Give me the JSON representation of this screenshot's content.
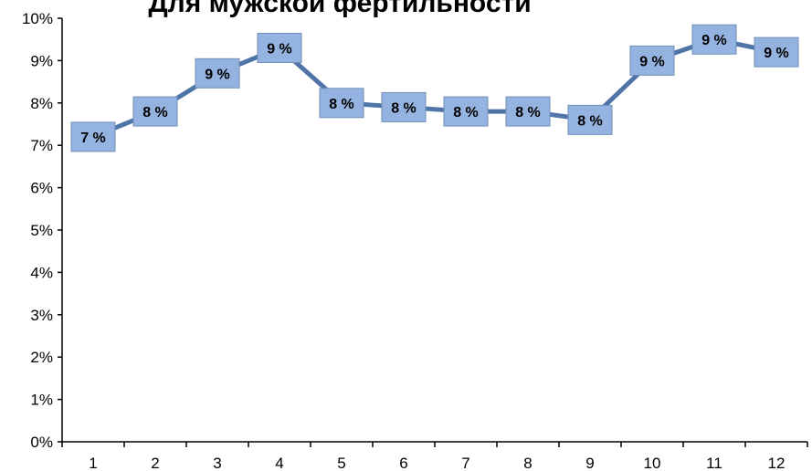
{
  "chart_data": {
    "type": "line",
    "title": "Для мужской фертильности",
    "xlabel": "",
    "ylabel": "",
    "categories": [
      "1",
      "2",
      "3",
      "4",
      "5",
      "6",
      "7",
      "8",
      "9",
      "10",
      "11",
      "12"
    ],
    "series": [
      {
        "values": [
          7.2,
          7.8,
          8.7,
          9.3,
          8.0,
          7.9,
          7.8,
          7.8,
          7.6,
          9.0,
          9.5,
          9.2
        ],
        "data_labels": [
          "7 %",
          "8 %",
          "9 %",
          "9 %",
          "8 %",
          "8 %",
          "8 %",
          "8 %",
          "8 %",
          "9 %",
          "9 %",
          "9 %"
        ]
      }
    ],
    "y_ticks": [
      "0%",
      "1%",
      "2%",
      "3%",
      "4%",
      "5%",
      "6%",
      "7%",
      "8%",
      "9%",
      "10%"
    ],
    "ylim": [
      0,
      10
    ],
    "grid": false,
    "legend": "none",
    "colors": {
      "line": "#4f74a8",
      "label_fill": "#95b3e0",
      "label_border": "#6f8fb8",
      "axis": "#000000"
    }
  }
}
